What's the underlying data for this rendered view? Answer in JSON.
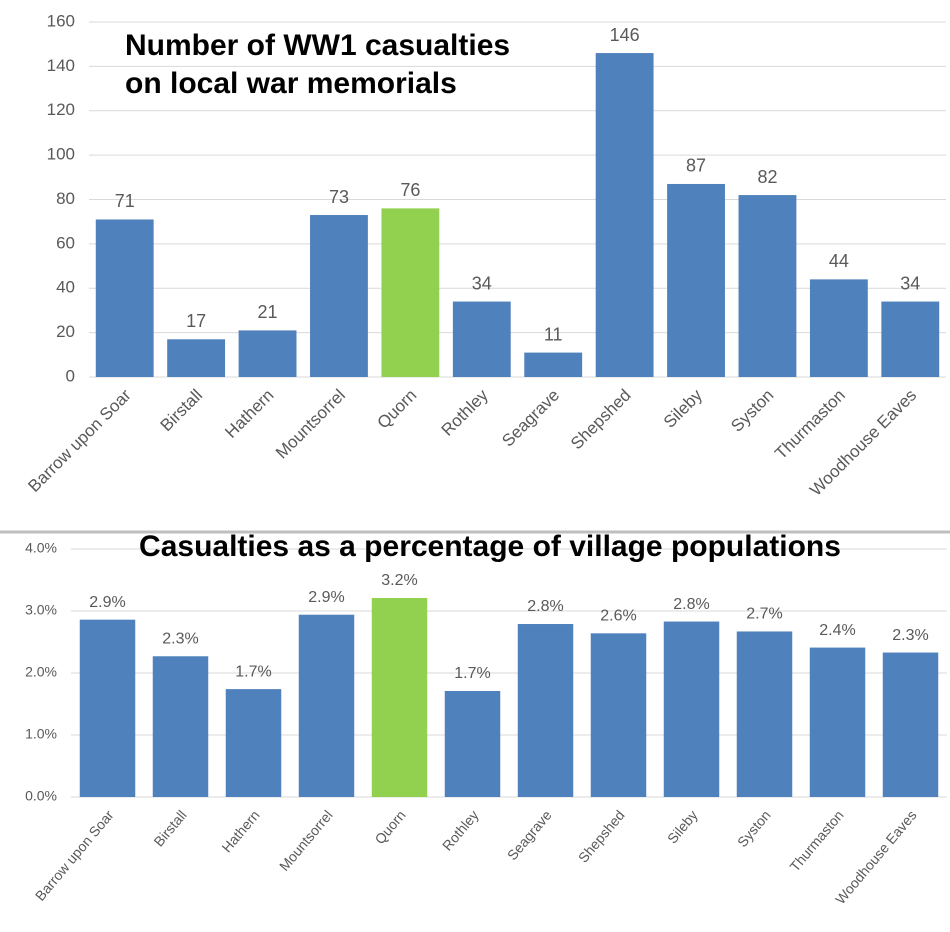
{
  "chart_data": [
    {
      "type": "bar",
      "title": [
        "Number of WW1 casualties",
        "on local war memorials"
      ],
      "categories": [
        "Barrow upon Soar",
        "Birstall",
        "Hathern",
        "Mountsorrel",
        "Quorn",
        "Rothley",
        "Seagrave",
        "Shepshed",
        "Sileby",
        "Syston",
        "Thurmaston",
        "Woodhouse Eaves"
      ],
      "values": [
        71,
        17,
        21,
        73,
        76,
        34,
        11,
        146,
        87,
        82,
        44,
        34
      ],
      "colors": [
        "#4f81bd",
        "#4f81bd",
        "#4f81bd",
        "#4f81bd",
        "#92d050",
        "#4f81bd",
        "#4f81bd",
        "#4f81bd",
        "#4f81bd",
        "#4f81bd",
        "#4f81bd",
        "#4f81bd"
      ],
      "ylim": [
        0,
        160
      ],
      "yticks": [
        0,
        20,
        40,
        60,
        80,
        100,
        120,
        140,
        160
      ],
      "grid": true
    },
    {
      "type": "bar",
      "title": "Casualties as a percentage of village populations",
      "categories": [
        "Barrow upon Soar",
        "Birstall",
        "Hathern",
        "Mountsorrel",
        "Quorn",
        "Rothley",
        "Seagrave",
        "Shepshed",
        "Sileby",
        "Syston",
        "Thurmaston",
        "Woodhouse Eaves"
      ],
      "values": [
        2.86,
        2.27,
        1.74,
        2.94,
        3.21,
        1.71,
        2.79,
        2.64,
        2.83,
        2.67,
        2.41,
        2.33
      ],
      "value_labels": [
        "2.9%",
        "2.3%",
        "1.7%",
        "2.9%",
        "3.2%",
        "1.7%",
        "2.8%",
        "2.6%",
        "2.8%",
        "2.7%",
        "2.4%",
        "2.3%"
      ],
      "colors": [
        "#4f81bd",
        "#4f81bd",
        "#4f81bd",
        "#4f81bd",
        "#92d050",
        "#4f81bd",
        "#4f81bd",
        "#4f81bd",
        "#4f81bd",
        "#4f81bd",
        "#4f81bd",
        "#4f81bd"
      ],
      "ylim": [
        0,
        4
      ],
      "yticks": [
        {
          "value": 0,
          "label": "0.0%"
        },
        {
          "value": 1,
          "label": "1.0%"
        },
        {
          "value": 2,
          "label": "2.0%"
        },
        {
          "value": 3,
          "label": "3.0%"
        },
        {
          "value": 4,
          "label": "4.0%"
        }
      ],
      "grid": true
    }
  ]
}
